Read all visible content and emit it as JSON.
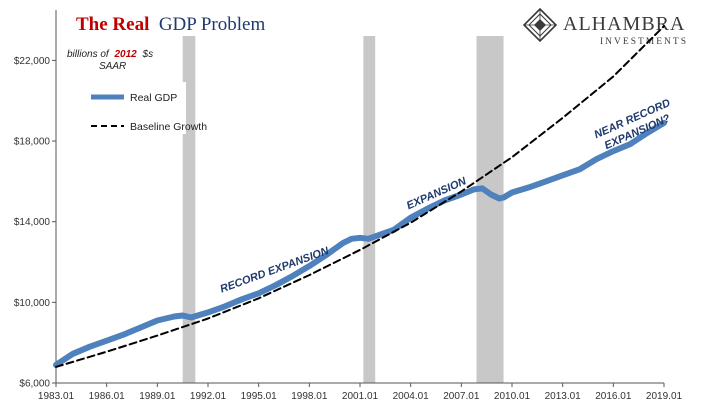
{
  "chart_data": {
    "type": "line",
    "title": {
      "part1": "The Real",
      "part2": "GDP Problem"
    },
    "units_note": {
      "pre": "billions of",
      "year": "2012",
      "post": "$s",
      "line2": "SAAR"
    },
    "ylim": [
      6000,
      24500
    ],
    "xlim": [
      1983.0,
      2019.0
    ],
    "y_ticks": [
      6000,
      10000,
      14000,
      18000,
      22000
    ],
    "y_tick_labels": [
      "$6,000",
      "$10,000",
      "$14,000",
      "$18,000",
      "$22,000"
    ],
    "x_ticks": [
      1983,
      1986,
      1989,
      1992,
      1995,
      1998,
      2001,
      2004,
      2007,
      2010,
      2013,
      2016,
      2019
    ],
    "x_tick_labels": [
      "1983.01",
      "1986.01",
      "1989.01",
      "1992.01",
      "1995.01",
      "1998.01",
      "2001.01",
      "2004.01",
      "2007.01",
      "2010.01",
      "2013.01",
      "2016.01",
      "2019.01"
    ],
    "recessions": [
      {
        "start": 1990.5,
        "end": 1991.25
      },
      {
        "start": 2001.2,
        "end": 2001.9
      },
      {
        "start": 2007.9,
        "end": 2009.5
      }
    ],
    "legend_position": "upper-left",
    "series": [
      {
        "name": "Real GDP",
        "color": "#4f81bd",
        "style": "solid",
        "x": [
          1983.0,
          1984.0,
          1985.0,
          1986.0,
          1987.0,
          1988.0,
          1989.0,
          1990.0,
          1990.5,
          1991.0,
          1992.0,
          1993.0,
          1994.0,
          1995.0,
          1996.0,
          1997.0,
          1998.0,
          1999.0,
          2000.0,
          2000.5,
          2001.0,
          2001.5,
          2002.0,
          2003.0,
          2004.0,
          2005.0,
          2006.0,
          2007.0,
          2007.75,
          2008.25,
          2008.75,
          2009.25,
          2009.5,
          2010.0,
          2011.0,
          2012.0,
          2013.0,
          2014.0,
          2015.0,
          2016.0,
          2017.0,
          2018.0,
          2019.0
        ],
        "values": [
          6900,
          7450,
          7800,
          8100,
          8400,
          8750,
          9100,
          9300,
          9350,
          9250,
          9500,
          9800,
          10150,
          10450,
          10850,
          11300,
          11800,
          12350,
          12950,
          13150,
          13200,
          13150,
          13300,
          13600,
          14200,
          14650,
          15050,
          15350,
          15600,
          15650,
          15350,
          15150,
          15200,
          15450,
          15700,
          16000,
          16300,
          16600,
          17100,
          17500,
          17850,
          18400,
          18900
        ]
      },
      {
        "name": "Baseline Growth",
        "color": "#000000",
        "style": "dashed",
        "x": [
          1983.0,
          1986.0,
          1989.0,
          1992.0,
          1995.0,
          1998.0,
          2001.0,
          2004.0,
          2007.0,
          2010.0,
          2013.0,
          2016.0,
          2019.0
        ],
        "values": [
          6800,
          7550,
          8350,
          9200,
          10200,
          11350,
          12600,
          13950,
          15500,
          17200,
          19150,
          21200,
          23700
        ]
      }
    ],
    "annotations": [
      {
        "text": "RECORD EXPANSION",
        "x": 1996.0,
        "y": 11450,
        "angle": -20
      },
      {
        "text": "EXPANSION",
        "x": 2005.6,
        "y": 15250,
        "angle": -24
      },
      {
        "text": "NEAR RECORD",
        "x": 2017.2,
        "y": 18950,
        "angle": -24
      },
      {
        "text": "EXPANSION?",
        "x": 2017.5,
        "y": 18300,
        "angle": -24
      }
    ]
  },
  "logo": {
    "name": "ALHAMBRA",
    "sub": "INVESTMENTS"
  }
}
